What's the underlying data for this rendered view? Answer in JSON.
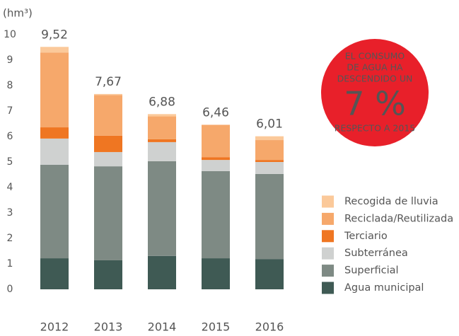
{
  "chart_data": {
    "type": "stacked_bar",
    "y_label": "(hm³)",
    "categories": [
      "2012",
      "2013",
      "2014",
      "2015",
      "2016"
    ],
    "series": [
      {
        "name": "Agua municipal",
        "color": "#3f5a54",
        "values": [
          1.22,
          1.14,
          1.31,
          1.22,
          1.19
        ]
      },
      {
        "name": "Superficial",
        "color": "#7e8a84",
        "values": [
          3.67,
          3.69,
          3.72,
          3.42,
          3.34
        ]
      },
      {
        "name": "Subterránea",
        "color": "#cfd1d0",
        "values": [
          1.03,
          0.56,
          0.75,
          0.44,
          0.47
        ]
      },
      {
        "name": "Terciario",
        "color": "#ef7622",
        "values": [
          0.44,
          0.64,
          0.11,
          0.11,
          0.08
        ]
      },
      {
        "name": "Reciclada/Reutilizada",
        "color": "#f6a86b",
        "values": [
          2.94,
          1.6,
          0.9,
          1.27,
          0.78
        ]
      },
      {
        "name": "Recogida de lluvia",
        "color": "#fbc99a",
        "values": [
          0.22,
          0.04,
          0.09,
          0,
          0.15
        ]
      }
    ],
    "totals": [
      9.52,
      7.67,
      6.88,
      6.46,
      6.01
    ],
    "total_labels": [
      "9,52",
      "7,67",
      "6,88",
      "6,46",
      "6,01"
    ],
    "ylim": [
      0,
      10
    ],
    "yticks": [
      0,
      1,
      2,
      3,
      4,
      5,
      6,
      7,
      8,
      9,
      10
    ],
    "grid": false,
    "badge": {
      "lines": [
        "EL CONSUMO",
        "DE AGUA HA",
        "DESCENDIDO UN"
      ],
      "big": "7 %",
      "footer": "RESPECTO A 2015",
      "color": "#e8202a"
    }
  }
}
